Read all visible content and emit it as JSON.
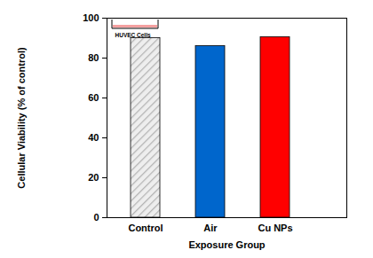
{
  "chart_data": {
    "type": "bar",
    "categories": [
      "Control",
      "Air",
      "Cu NPs"
    ],
    "values": [
      90,
      86,
      90.5
    ],
    "colors": [
      "#b4b4b4",
      "#0066cc",
      "#ff0000"
    ],
    "xlabel": "Exposure Group",
    "ylabel": "Cellular Viability (% of control)",
    "ylim": [
      0,
      100
    ],
    "yticks": [
      0,
      20,
      40,
      60,
      80,
      100
    ],
    "annotation": "HUVEC Cells",
    "grid": false
  }
}
